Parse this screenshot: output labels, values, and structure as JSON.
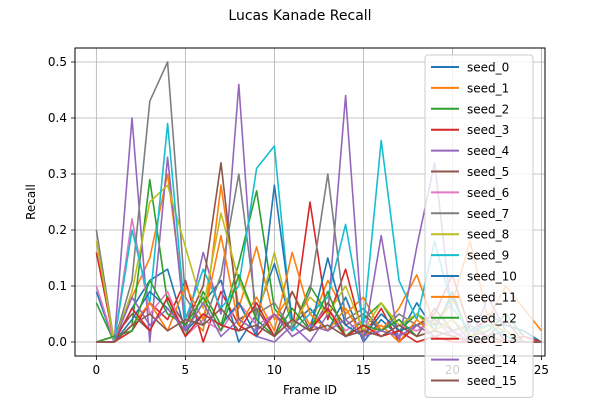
{
  "chart_data": {
    "type": "line",
    "title": "Lucas Kanade Recall",
    "xlabel": "Frame ID",
    "ylabel": "Recall",
    "xlim": [
      -1.2,
      25.2
    ],
    "ylim": [
      -0.025,
      0.525
    ],
    "xticks": [
      0,
      5,
      10,
      15,
      20,
      25
    ],
    "yticks": [
      0.0,
      0.1,
      0.2,
      0.3,
      0.4,
      0.5
    ],
    "grid": true,
    "legend_position": "upper right",
    "x": [
      0,
      1,
      2,
      3,
      4,
      5,
      6,
      7,
      8,
      9,
      10,
      11,
      12,
      13,
      14,
      15,
      16,
      17,
      18,
      19,
      20,
      21,
      22,
      23,
      24,
      25
    ],
    "series": [
      {
        "name": "seed_0",
        "color": "#1f77b4",
        "values": [
          0.09,
          0.0,
          0.06,
          0.11,
          0.13,
          0.02,
          0.07,
          0.11,
          0.0,
          0.05,
          0.14,
          0.03,
          0.06,
          0.02,
          0.08,
          0.0,
          0.04,
          0.01,
          0.07,
          0.02,
          0.09,
          0.0,
          0.05,
          0.03,
          0.02,
          0.0
        ]
      },
      {
        "name": "seed_1",
        "color": "#ff7f0e",
        "values": [
          0.0,
          0.01,
          0.08,
          0.15,
          0.3,
          0.05,
          0.02,
          0.28,
          0.06,
          0.17,
          0.04,
          0.09,
          0.03,
          0.11,
          0.05,
          0.08,
          0.02,
          0.06,
          0.12,
          0.03,
          0.07,
          0.18,
          0.04,
          0.1,
          0.06,
          0.02
        ]
      },
      {
        "name": "seed_2",
        "color": "#2ca02c",
        "values": [
          0.07,
          0.0,
          0.03,
          0.29,
          0.07,
          0.01,
          0.09,
          0.03,
          0.14,
          0.27,
          0.06,
          0.02,
          0.1,
          0.05,
          0.01,
          0.04,
          0.07,
          0.02,
          0.05,
          0.03,
          0.08,
          0.01,
          0.02,
          0.05,
          0.01,
          0.0
        ]
      },
      {
        "name": "seed_3",
        "color": "#d62728",
        "values": [
          0.16,
          0.0,
          0.02,
          0.07,
          0.04,
          0.11,
          0.0,
          0.09,
          0.03,
          0.01,
          0.05,
          0.02,
          0.25,
          0.04,
          0.13,
          0.01,
          0.06,
          0.0,
          0.03,
          0.05,
          0.12,
          0.02,
          0.04,
          0.0,
          0.01,
          0.0
        ]
      },
      {
        "name": "seed_4",
        "color": "#9467bd",
        "values": [
          0.0,
          0.0,
          0.4,
          0.0,
          0.33,
          0.02,
          0.16,
          0.05,
          0.46,
          0.01,
          0.0,
          0.03,
          0.0,
          0.05,
          0.44,
          0.0,
          0.19,
          0.0,
          0.17,
          0.32,
          0.04,
          0.0,
          0.08,
          0.02,
          0.0,
          0.0
        ]
      },
      {
        "name": "seed_5",
        "color": "#8c564b",
        "values": [
          0.0,
          0.01,
          0.05,
          0.02,
          0.08,
          0.03,
          0.1,
          0.32,
          0.04,
          0.06,
          0.01,
          0.09,
          0.02,
          0.07,
          0.03,
          0.05,
          0.02,
          0.04,
          0.01,
          0.06,
          0.02,
          0.03,
          0.01,
          0.04,
          0.0,
          0.0
        ]
      },
      {
        "name": "seed_6",
        "color": "#e377c2",
        "values": [
          0.1,
          0.0,
          0.22,
          0.05,
          0.09,
          0.01,
          0.04,
          0.02,
          0.07,
          0.03,
          0.05,
          0.01,
          0.03,
          0.06,
          0.02,
          0.04,
          0.01,
          0.03,
          0.02,
          0.04,
          0.01,
          0.02,
          0.01,
          0.02,
          0.0,
          0.0
        ]
      },
      {
        "name": "seed_7",
        "color": "#7f7f7f",
        "values": [
          0.2,
          0.0,
          0.11,
          0.43,
          0.5,
          0.08,
          0.03,
          0.12,
          0.3,
          0.05,
          0.07,
          0.02,
          0.09,
          0.3,
          0.04,
          0.06,
          0.02,
          0.05,
          0.03,
          0.04,
          0.02,
          0.03,
          0.01,
          0.02,
          0.0,
          0.0
        ]
      },
      {
        "name": "seed_8",
        "color": "#bcbd22",
        "values": [
          0.18,
          0.0,
          0.09,
          0.25,
          0.28,
          0.17,
          0.06,
          0.23,
          0.11,
          0.04,
          0.16,
          0.03,
          0.08,
          0.05,
          0.1,
          0.02,
          0.07,
          0.03,
          0.05,
          0.02,
          0.04,
          0.01,
          0.03,
          0.02,
          0.0,
          0.0
        ]
      },
      {
        "name": "seed_9",
        "color": "#17becf",
        "values": [
          0.0,
          0.0,
          0.2,
          0.07,
          0.39,
          0.04,
          0.13,
          0.06,
          0.1,
          0.31,
          0.35,
          0.02,
          0.05,
          0.08,
          0.21,
          0.03,
          0.36,
          0.11,
          0.04,
          0.18,
          0.06,
          0.02,
          0.03,
          0.01,
          0.0,
          0.0
        ]
      },
      {
        "name": "seed_10",
        "color": "#1f77b4",
        "values": [
          0.0,
          0.0,
          0.04,
          0.09,
          0.06,
          0.02,
          0.05,
          0.03,
          0.07,
          0.01,
          0.28,
          0.04,
          0.02,
          0.15,
          0.03,
          0.01,
          0.05,
          0.02,
          0.03,
          0.01,
          0.02,
          0.0,
          0.01,
          0.0,
          0.0,
          0.0
        ]
      },
      {
        "name": "seed_11",
        "color": "#ff7f0e",
        "values": [
          0.0,
          0.0,
          0.03,
          0.07,
          0.02,
          0.1,
          0.04,
          0.19,
          0.03,
          0.08,
          0.02,
          0.16,
          0.05,
          0.02,
          0.06,
          0.01,
          0.03,
          0.0,
          0.04,
          0.01,
          0.02,
          0.0,
          0.01,
          0.0,
          0.0,
          0.0
        ]
      },
      {
        "name": "seed_12",
        "color": "#2ca02c",
        "values": [
          0.0,
          0.01,
          0.02,
          0.11,
          0.05,
          0.03,
          0.08,
          0.02,
          0.12,
          0.04,
          0.01,
          0.06,
          0.02,
          0.09,
          0.01,
          0.03,
          0.02,
          0.04,
          0.01,
          0.02,
          0.01,
          0.0,
          0.01,
          0.0,
          0.0,
          0.0
        ]
      },
      {
        "name": "seed_13",
        "color": "#d62728",
        "values": [
          0.0,
          0.0,
          0.06,
          0.02,
          0.08,
          0.01,
          0.05,
          0.03,
          0.02,
          0.07,
          0.01,
          0.04,
          0.02,
          0.06,
          0.01,
          0.03,
          0.01,
          0.02,
          0.0,
          0.01,
          0.0,
          0.0,
          0.0,
          0.0,
          0.0,
          0.0
        ]
      },
      {
        "name": "seed_14",
        "color": "#9467bd",
        "values": [
          0.0,
          0.0,
          0.08,
          0.03,
          0.06,
          0.02,
          0.07,
          0.01,
          0.04,
          0.02,
          0.05,
          0.01,
          0.03,
          0.02,
          0.04,
          0.01,
          0.02,
          0.01,
          0.03,
          0.01,
          0.02,
          0.0,
          0.01,
          0.0,
          0.0,
          0.0
        ]
      },
      {
        "name": "seed_15",
        "color": "#8c564b",
        "values": [
          0.0,
          0.0,
          0.03,
          0.05,
          0.02,
          0.04,
          0.03,
          0.06,
          0.02,
          0.03,
          0.01,
          0.04,
          0.02,
          0.03,
          0.01,
          0.02,
          0.01,
          0.03,
          0.01,
          0.02,
          0.01,
          0.0,
          0.01,
          0.0,
          0.0,
          0.0
        ]
      }
    ]
  }
}
